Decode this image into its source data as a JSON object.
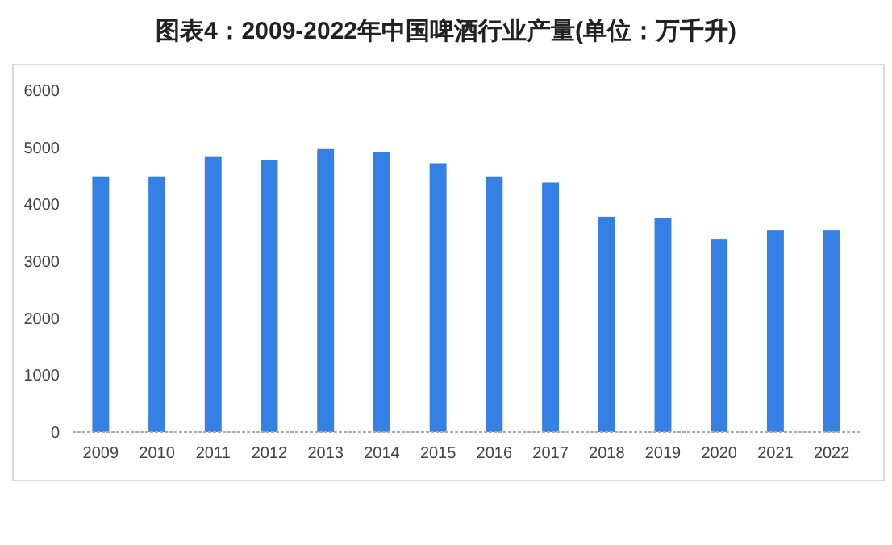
{
  "chart_data": {
    "type": "bar",
    "title": "图表4：2009-2022年中国啤酒行业产量(单位：万千升)",
    "categories": [
      "2009",
      "2010",
      "2011",
      "2012",
      "2013",
      "2014",
      "2015",
      "2016",
      "2017",
      "2018",
      "2019",
      "2020",
      "2021",
      "2022"
    ],
    "values": [
      4490,
      4490,
      4830,
      4770,
      4970,
      4920,
      4720,
      4490,
      4380,
      3780,
      3750,
      3380,
      3550,
      3550
    ],
    "color": "#3580e4",
    "ylim": [
      0,
      6000
    ],
    "yticks": [
      0,
      1000,
      2000,
      3000,
      4000,
      5000,
      6000
    ],
    "grid": false
  }
}
